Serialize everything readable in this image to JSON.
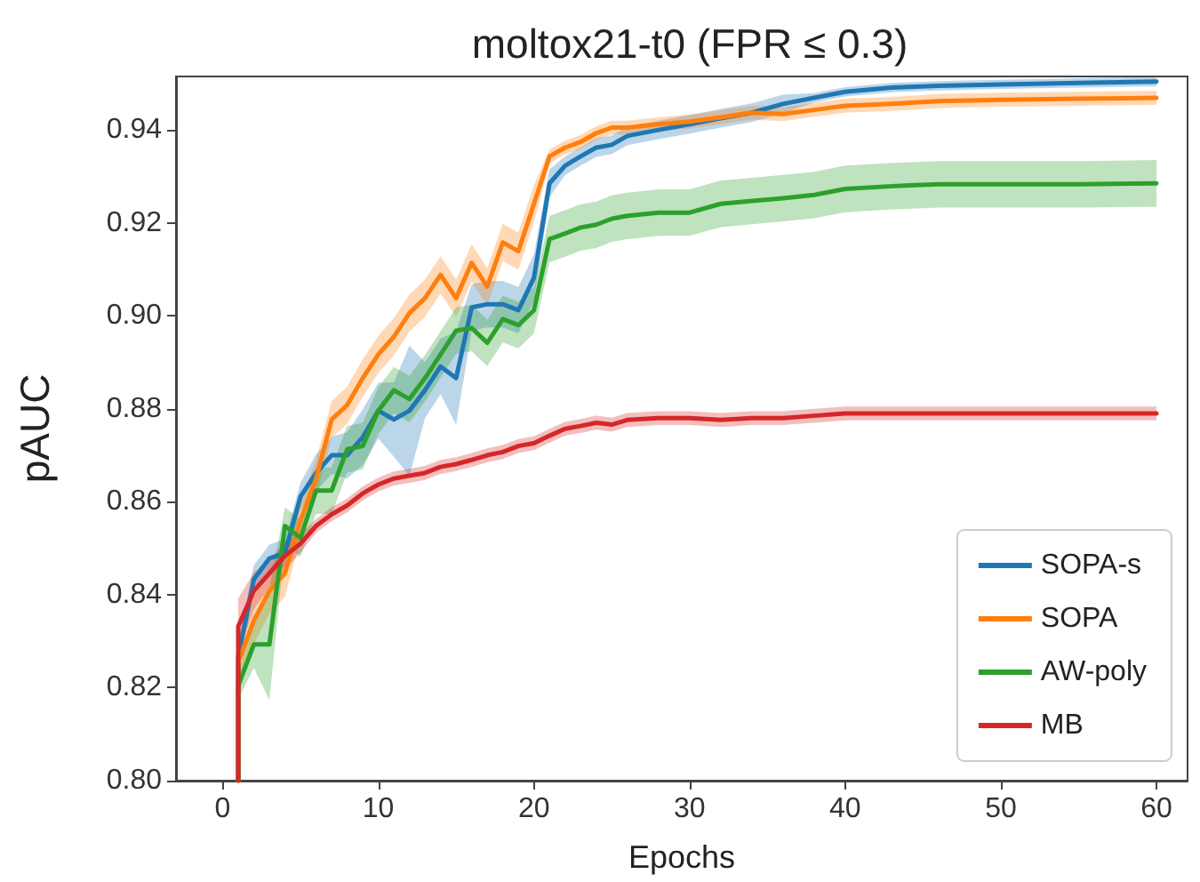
{
  "chart_data": {
    "type": "line",
    "title": "moltox21-t0 (FPR ≤ 0.3)",
    "xlabel": "Epochs",
    "ylabel": "pAUC",
    "x": [
      1,
      1,
      2,
      3,
      4,
      5,
      6,
      7,
      8,
      9,
      10,
      11,
      12,
      13,
      14,
      15,
      16,
      17,
      18,
      19,
      20,
      21,
      22,
      23,
      24,
      25,
      26,
      28,
      30,
      32,
      34,
      36,
      38,
      40,
      43,
      46,
      50,
      55,
      60
    ],
    "series": [
      {
        "name": "SOPA-s",
        "color": "#1f77b4",
        "values": [
          0.8,
          0.8268,
          0.8433,
          0.8478,
          0.849,
          0.8611,
          0.8662,
          0.87,
          0.87,
          0.8739,
          0.8796,
          0.8777,
          0.8796,
          0.884,
          0.8891,
          0.8866,
          0.9018,
          0.9025,
          0.9025,
          0.9012,
          0.9082,
          0.9285,
          0.9323,
          0.9343,
          0.9362,
          0.9368,
          0.9387,
          0.94,
          0.9412,
          0.9425,
          0.9437,
          0.9456,
          0.9469,
          0.9482,
          0.9491,
          0.9495,
          0.9498,
          0.9501,
          0.9504
        ],
        "lower": [
          0.8,
          0.8238,
          0.8403,
          0.8448,
          0.846,
          0.8581,
          0.8622,
          0.866,
          0.865,
          0.8679,
          0.8736,
          0.8697,
          0.8656,
          0.878,
          0.8831,
          0.8766,
          0.8968,
          0.8975,
          0.8975,
          0.8962,
          0.9032,
          0.9255,
          0.9303,
          0.9323,
          0.9342,
          0.9348,
          0.9367,
          0.938,
          0.9392,
          0.9405,
          0.9417,
          0.9436,
          0.9459,
          0.9472,
          0.9481,
          0.9485,
          0.9488,
          0.9491,
          0.9494
        ],
        "upper": [
          0.8,
          0.8298,
          0.8463,
          0.8508,
          0.852,
          0.8641,
          0.8702,
          0.874,
          0.875,
          0.8799,
          0.8856,
          0.8857,
          0.8936,
          0.89,
          0.8951,
          0.8966,
          0.9068,
          0.9075,
          0.9075,
          0.9062,
          0.9132,
          0.9315,
          0.9343,
          0.9363,
          0.9382,
          0.9388,
          0.9407,
          0.942,
          0.9432,
          0.9445,
          0.9457,
          0.9476,
          0.9479,
          0.9492,
          0.9501,
          0.9505,
          0.9508,
          0.9511,
          0.9514
        ]
      },
      {
        "name": "SOPA",
        "color": "#ff7f0e",
        "values": [
          0.8,
          0.8255,
          0.8344,
          0.8408,
          0.8446,
          0.856,
          0.865,
          0.8777,
          0.8808,
          0.8866,
          0.8917,
          0.8955,
          0.9006,
          0.9038,
          0.9088,
          0.9038,
          0.9114,
          0.9063,
          0.9158,
          0.9139,
          0.9241,
          0.9343,
          0.9362,
          0.9374,
          0.9393,
          0.9405,
          0.9405,
          0.9412,
          0.9418,
          0.9427,
          0.9437,
          0.9434,
          0.9443,
          0.9452,
          0.9456,
          0.9462,
          0.9465,
          0.9467,
          0.9469
        ],
        "lower": [
          0.8,
          0.8215,
          0.8294,
          0.8358,
          0.8396,
          0.852,
          0.861,
          0.8737,
          0.8768,
          0.8826,
          0.8877,
          0.8915,
          0.8966,
          0.8998,
          0.9048,
          0.8998,
          0.9074,
          0.9023,
          0.9118,
          0.9099,
          0.9201,
          0.9328,
          0.9347,
          0.9359,
          0.9378,
          0.939,
          0.939,
          0.9397,
          0.9403,
          0.9412,
          0.9422,
          0.9419,
          0.9428,
          0.9437,
          0.9441,
          0.9447,
          0.945,
          0.9452,
          0.9454
        ],
        "upper": [
          0.8,
          0.8295,
          0.8394,
          0.8458,
          0.8496,
          0.86,
          0.869,
          0.8817,
          0.8848,
          0.8906,
          0.8957,
          0.8995,
          0.9046,
          0.9078,
          0.9128,
          0.9078,
          0.9154,
          0.9103,
          0.9198,
          0.9179,
          0.9281,
          0.9358,
          0.9377,
          0.9389,
          0.9408,
          0.942,
          0.942,
          0.9427,
          0.9433,
          0.9442,
          0.9452,
          0.9449,
          0.9458,
          0.9467,
          0.9471,
          0.9477,
          0.948,
          0.9482,
          0.9484
        ]
      },
      {
        "name": "AW-poly",
        "color": "#2ca02c",
        "values": [
          0.8,
          0.8204,
          0.8293,
          0.8293,
          0.8548,
          0.8522,
          0.8624,
          0.8624,
          0.8713,
          0.872,
          0.8796,
          0.884,
          0.8821,
          0.8866,
          0.8917,
          0.8968,
          0.8974,
          0.8942,
          0.8993,
          0.898,
          0.9012,
          0.9165,
          0.9177,
          0.919,
          0.9196,
          0.9209,
          0.9215,
          0.9222,
          0.9222,
          0.9241,
          0.9247,
          0.9253,
          0.926,
          0.9273,
          0.9279,
          0.9283,
          0.9283,
          0.9283,
          0.9285
        ],
        "lower": [
          0.8,
          0.8174,
          0.8243,
          0.8173,
          0.8508,
          0.8482,
          0.8574,
          0.8574,
          0.8663,
          0.867,
          0.8746,
          0.879,
          0.8771,
          0.8816,
          0.8867,
          0.8918,
          0.8924,
          0.8892,
          0.8943,
          0.893,
          0.8962,
          0.9115,
          0.9127,
          0.914,
          0.9146,
          0.9159,
          0.9165,
          0.9172,
          0.9172,
          0.9191,
          0.9197,
          0.9203,
          0.921,
          0.9223,
          0.9229,
          0.9233,
          0.9233,
          0.9233,
          0.9235
        ],
        "upper": [
          0.8,
          0.8234,
          0.8343,
          0.8413,
          0.8588,
          0.8562,
          0.8674,
          0.8674,
          0.8763,
          0.877,
          0.8846,
          0.889,
          0.8871,
          0.8916,
          0.8967,
          0.9018,
          0.9024,
          0.8992,
          0.9043,
          0.903,
          0.9062,
          0.9215,
          0.9227,
          0.924,
          0.9246,
          0.9259,
          0.9265,
          0.9272,
          0.9272,
          0.9291,
          0.9297,
          0.9303,
          0.931,
          0.9323,
          0.9329,
          0.9333,
          0.9333,
          0.9333,
          0.9335
        ]
      },
      {
        "name": "MB",
        "color": "#d62728",
        "values": [
          0.8,
          0.8332,
          0.8408,
          0.8446,
          0.8484,
          0.851,
          0.8548,
          0.8573,
          0.8592,
          0.8618,
          0.8637,
          0.865,
          0.8656,
          0.8662,
          0.8675,
          0.8681,
          0.869,
          0.87,
          0.8707,
          0.872,
          0.8726,
          0.8742,
          0.8757,
          0.8763,
          0.877,
          0.8766,
          0.8776,
          0.878,
          0.878,
          0.8776,
          0.878,
          0.878,
          0.8785,
          0.879,
          0.879,
          0.879,
          0.879,
          0.879,
          0.879
        ],
        "lower": [
          0.8,
          0.8272,
          0.8368,
          0.8416,
          0.8454,
          0.849,
          0.8533,
          0.8558,
          0.8577,
          0.8603,
          0.8622,
          0.8635,
          0.8641,
          0.8647,
          0.866,
          0.8666,
          0.8675,
          0.8685,
          0.8692,
          0.8705,
          0.8711,
          0.8727,
          0.8742,
          0.8748,
          0.8755,
          0.8751,
          0.8761,
          0.8765,
          0.8765,
          0.8761,
          0.8765,
          0.8765,
          0.877,
          0.8775,
          0.8775,
          0.8775,
          0.8775,
          0.8775,
          0.8775
        ],
        "upper": [
          0.8,
          0.8392,
          0.8448,
          0.8476,
          0.8514,
          0.853,
          0.8563,
          0.8588,
          0.8607,
          0.8633,
          0.8652,
          0.8665,
          0.8671,
          0.8677,
          0.869,
          0.8696,
          0.8705,
          0.8715,
          0.8722,
          0.8735,
          0.8741,
          0.8757,
          0.8772,
          0.8778,
          0.8785,
          0.8781,
          0.8791,
          0.8795,
          0.8795,
          0.8791,
          0.8795,
          0.8795,
          0.88,
          0.8805,
          0.8805,
          0.8805,
          0.8805,
          0.8805,
          0.8805
        ]
      }
    ],
    "xlim": [
      -3,
      62
    ],
    "xticks": [
      0,
      10,
      20,
      30,
      40,
      50,
      60
    ],
    "ylim": [
      0.8,
      0.9515
    ],
    "yticks": [
      {
        "value": 0.8,
        "label": "0.80"
      },
      0.82,
      0.84,
      0.86,
      0.88,
      {
        "value": 0.9,
        "label": "0.90"
      },
      0.92,
      0.94
    ],
    "legend": "bottom right",
    "grid": false
  }
}
